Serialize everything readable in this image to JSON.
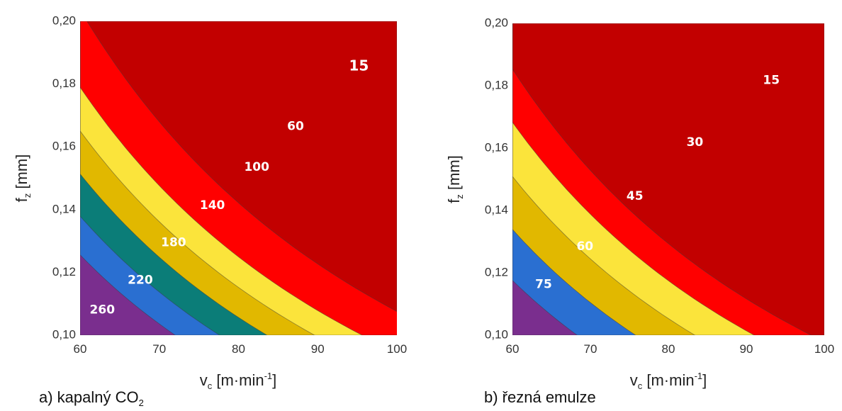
{
  "colors": {
    "purple": "#7a2e8e",
    "blue": "#2a6fd1",
    "teal": "#0b7d78",
    "gold": "#e1b800",
    "yellow": "#fbe43b",
    "red": "#ff0000",
    "darkred": "#c20000"
  },
  "chart_data": [
    {
      "type": "contour",
      "caption_prefix": "a) kapalný CO",
      "caption_sub": "2",
      "xlabel_prefix": "v",
      "xlabel_sub": "c",
      "xlabel_unit": " [m·min",
      "xlabel_sup": "-1",
      "xlabel_end": "]",
      "ylabel_prefix": "f",
      "ylabel_sub": "z",
      "ylabel_unit": " [mm]",
      "xlim": [
        60,
        100
      ],
      "ylim": [
        0.1,
        0.2
      ],
      "x_ticks": [
        "60",
        "70",
        "80",
        "90",
        "100"
      ],
      "y_ticks": [
        "0,10",
        "0,12",
        "0,14",
        "0,16",
        "0,18",
        "0,20"
      ],
      "bands": [
        {
          "color": "purple",
          "x_at_fmin": 72
        },
        {
          "color": "blue",
          "x_at_fmin": 77.6
        },
        {
          "color": "teal",
          "x_at_fmin": 83.6
        },
        {
          "color": "gold",
          "x_at_fmin": 89.6
        },
        {
          "color": "yellow",
          "x_at_fmin": 95.6
        },
        {
          "color": "red",
          "x_at_fmin": 106
        },
        {
          "color": "darkred",
          "x_at_fmin": 1000
        }
      ],
      "labels": [
        {
          "text": "260",
          "x": 62.8,
          "y": 0.108
        },
        {
          "text": "220",
          "x": 67.6,
          "y": 0.1175
        },
        {
          "text": "180",
          "x": 71.8,
          "y": 0.1295
        },
        {
          "text": "140",
          "x": 76.7,
          "y": 0.1413
        },
        {
          "text": "100",
          "x": 82.3,
          "y": 0.1535
        },
        {
          "text": "60",
          "x": 87.2,
          "y": 0.1665
        },
        {
          "text": "15",
          "x": 95.2,
          "y": 0.1855
        }
      ]
    },
    {
      "type": "contour",
      "caption_prefix": "b) řezná emulze",
      "caption_sub": "",
      "xlabel_prefix": "v",
      "xlabel_sub": "c",
      "xlabel_unit": " [m·min",
      "xlabel_sup": "-1",
      "xlabel_end": "]",
      "ylabel_prefix": "f",
      "ylabel_sub": "z",
      "ylabel_unit": " [mm]",
      "xlim": [
        60,
        100
      ],
      "ylim": [
        0.1,
        0.2
      ],
      "x_ticks": [
        "60",
        "70",
        "80",
        "90",
        "100"
      ],
      "y_ticks": [
        "0,10",
        "0,12",
        "0,14",
        "0,16",
        "0,18",
        "0,20"
      ],
      "bands": [
        {
          "color": "purple",
          "x_at_fmin": 68.3
        },
        {
          "color": "blue",
          "x_at_fmin": 75.8
        },
        {
          "color": "gold",
          "x_at_fmin": 83.4
        },
        {
          "color": "yellow",
          "x_at_fmin": 91
        },
        {
          "color": "red",
          "x_at_fmin": 98.3
        },
        {
          "color": "darkred",
          "x_at_fmin": 1000
        }
      ],
      "labels": [
        {
          "text": "75",
          "x": 64,
          "y": 0.1163
        },
        {
          "text": "60",
          "x": 69.3,
          "y": 0.1284
        },
        {
          "text": "45",
          "x": 75.7,
          "y": 0.1446
        },
        {
          "text": "30",
          "x": 83.4,
          "y": 0.1618
        },
        {
          "text": "15",
          "x": 93.2,
          "y": 0.1817
        }
      ]
    }
  ]
}
